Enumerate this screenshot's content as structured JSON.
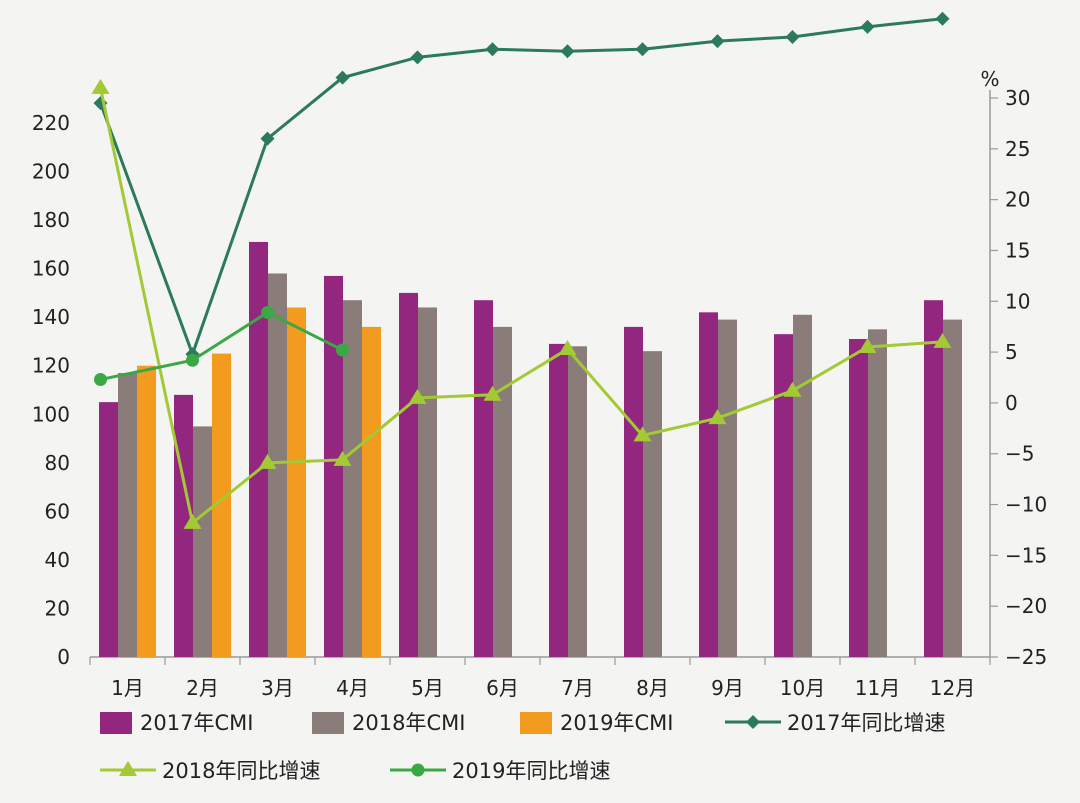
{
  "chart_data": {
    "type": "bar",
    "categories": [
      "1月",
      "2月",
      "3月",
      "4月",
      "5月",
      "6月",
      "7月",
      "8月",
      "9月",
      "10月",
      "11月",
      "12月"
    ],
    "y_left": {
      "ylim": [
        0,
        220
      ],
      "ticks": [
        0,
        20,
        40,
        60,
        80,
        100,
        120,
        140,
        160,
        180,
        200,
        220
      ]
    },
    "y_right": {
      "unit": "%",
      "ylim": [
        -25,
        30
      ],
      "ticks": [
        -25,
        -20,
        -15,
        -10,
        -5,
        0,
        5,
        10,
        15,
        20,
        25,
        30
      ]
    },
    "grid": false,
    "legend_position": "bottom",
    "bar_series": [
      {
        "name": "2017年CMI",
        "color": "#93277f",
        "values": [
          105,
          108,
          171,
          157,
          150,
          147,
          129,
          136,
          142,
          133,
          131,
          147
        ]
      },
      {
        "name": "2018年CMI",
        "color": "#8a7c78",
        "values": [
          117,
          95,
          158,
          147,
          144,
          136,
          128,
          126,
          139,
          141,
          135,
          139
        ]
      },
      {
        "name": "2019年CMI",
        "color": "#f29b1f",
        "values": [
          120,
          125,
          144,
          136
        ]
      }
    ],
    "line_series": [
      {
        "name": "2017年同比增速",
        "color": "#2b7a5b",
        "marker": "diamond",
        "values": [
          29.5,
          4.8,
          26,
          32,
          34,
          34.8,
          34.6,
          34.8,
          35.6,
          36,
          37,
          37.8
        ]
      },
      {
        "name": "2018年同比增速",
        "color": "#a3c934",
        "marker": "triangle",
        "values": [
          31,
          -11.8,
          -5.9,
          -5.6,
          0.5,
          0.8,
          5.3,
          -3.2,
          -1.5,
          1.2,
          5.5,
          6
        ]
      },
      {
        "name": "2019年同比增速",
        "color": "#3aa844",
        "marker": "circle",
        "values": [
          2.3,
          4.2,
          8.9,
          5.2
        ]
      }
    ]
  }
}
